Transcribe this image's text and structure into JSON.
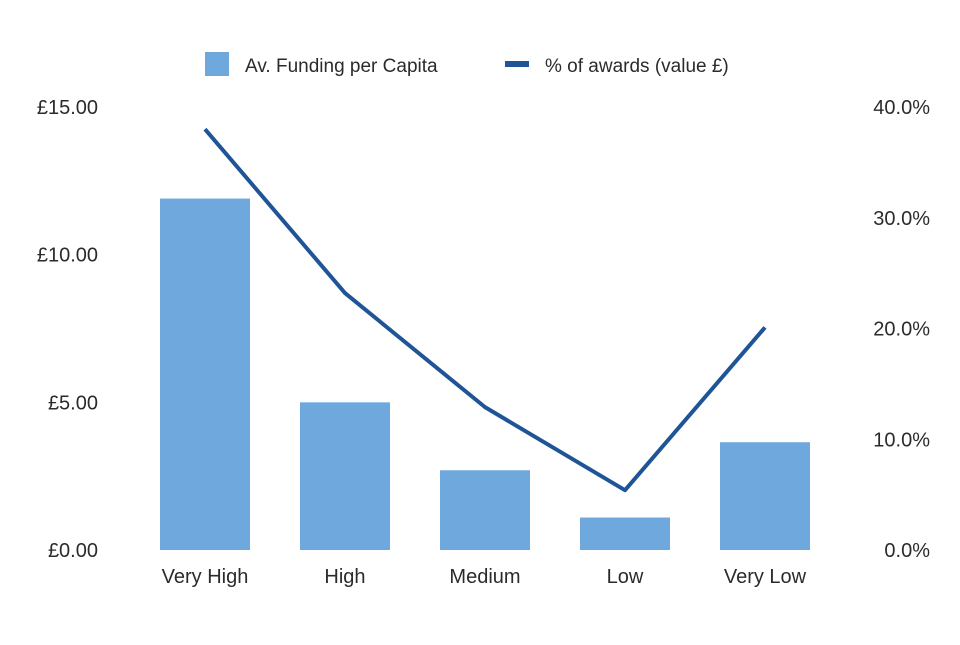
{
  "chart_data": {
    "type": "bar",
    "categories": [
      "Very High",
      "High",
      "Medium",
      "Low",
      "Very Low"
    ],
    "series": [
      {
        "name": "Av. Funding per Capita",
        "type": "bar",
        "axis": "left",
        "color": "#6fa8dc",
        "values": [
          11.9,
          5.0,
          2.7,
          1.1,
          3.65
        ]
      },
      {
        "name": "% of awards (value £)",
        "type": "line",
        "axis": "right",
        "color": "#1f5596",
        "values": [
          38.0,
          23.2,
          12.9,
          5.4,
          20.1
        ]
      }
    ],
    "y_left": {
      "ylim": [
        0,
        15
      ],
      "ticks": [
        0,
        5,
        10,
        15
      ],
      "tick_labels": [
        "£0.00",
        "£5.00",
        "£10.00",
        "£15.00"
      ]
    },
    "y_right": {
      "ylim": [
        0,
        40
      ],
      "ticks": [
        0,
        10,
        20,
        30,
        40
      ],
      "tick_labels": [
        "0.0%",
        "10.0%",
        "20.0%",
        "30.0%",
        "40.0%"
      ]
    },
    "legend": {
      "placement": "top-center",
      "items": [
        {
          "label": "Av. Funding per Capita",
          "icon": "square-swatch-icon",
          "color": "#6fa8dc"
        },
        {
          "label": "% of awards (value £)",
          "icon": "line-swatch-icon",
          "color": "#1f5596"
        }
      ]
    },
    "grid": false
  }
}
